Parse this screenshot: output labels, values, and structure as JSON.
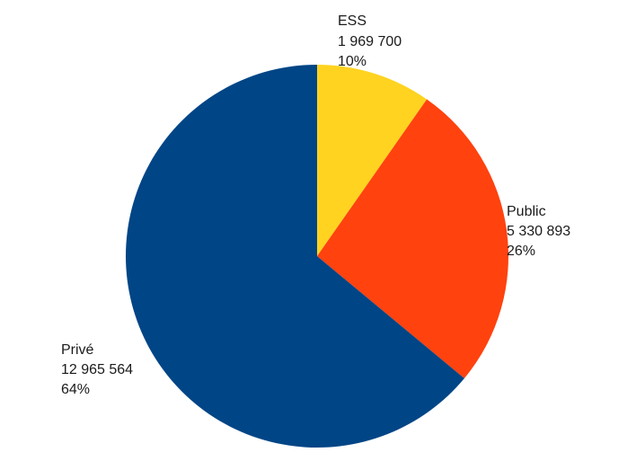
{
  "chart_data": {
    "type": "pie",
    "slices": [
      {
        "name": "ESS",
        "value_text": "1 969 700",
        "value": 1969700,
        "percent_text": "10%",
        "color": "#FFD320"
      },
      {
        "name": "Public",
        "value_text": "5 330 893",
        "value": 5330893,
        "percent_text": "26%",
        "color": "#FF420E"
      },
      {
        "name": "Privé",
        "value_text": "12 965 564",
        "value": 12965564,
        "percent_text": "64%",
        "color": "#004586"
      }
    ],
    "start_angle": "12 o'clock",
    "direction": "clockwise"
  }
}
